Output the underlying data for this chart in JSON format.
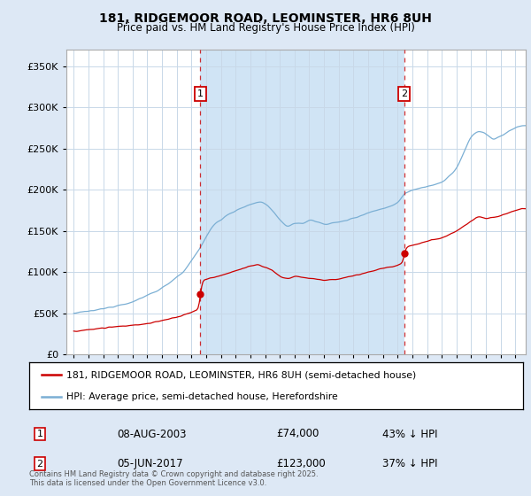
{
  "title": "181, RIDGEMOOR ROAD, LEOMINSTER, HR6 8UH",
  "subtitle": "Price paid vs. HM Land Registry's House Price Index (HPI)",
  "legend_line1": "181, RIDGEMOOR ROAD, LEOMINSTER, HR6 8UH (semi-detached house)",
  "legend_line2": "HPI: Average price, semi-detached house, Herefordshire",
  "footnote": "Contains HM Land Registry data © Crown copyright and database right 2025.\nThis data is licensed under the Open Government Licence v3.0.",
  "transaction1_date": "08-AUG-2003",
  "transaction1_price": "£74,000",
  "transaction1_hpi": "43% ↓ HPI",
  "transaction2_date": "05-JUN-2017",
  "transaction2_price": "£123,000",
  "transaction2_hpi": "37% ↓ HPI",
  "hpi_color": "#7bafd4",
  "price_color": "#cc0000",
  "marker1_x": 2003.6,
  "marker1_y": 74000,
  "marker2_x": 2017.45,
  "marker2_y": 123000,
  "vline1_x": 2003.6,
  "vline2_x": 2017.45,
  "ylim": [
    0,
    370000
  ],
  "xlim": [
    1994.5,
    2025.7
  ],
  "yticks": [
    0,
    50000,
    100000,
    150000,
    200000,
    250000,
    300000,
    350000
  ],
  "xticks": [
    1995,
    1996,
    1997,
    1998,
    1999,
    2000,
    2001,
    2002,
    2003,
    2004,
    2005,
    2006,
    2007,
    2008,
    2009,
    2010,
    2011,
    2012,
    2013,
    2014,
    2015,
    2016,
    2017,
    2018,
    2019,
    2020,
    2021,
    2022,
    2023,
    2024,
    2025
  ],
  "background_color": "#dde8f5",
  "plot_bg_color": "#ffffff",
  "shade_color": "#d0e4f5"
}
